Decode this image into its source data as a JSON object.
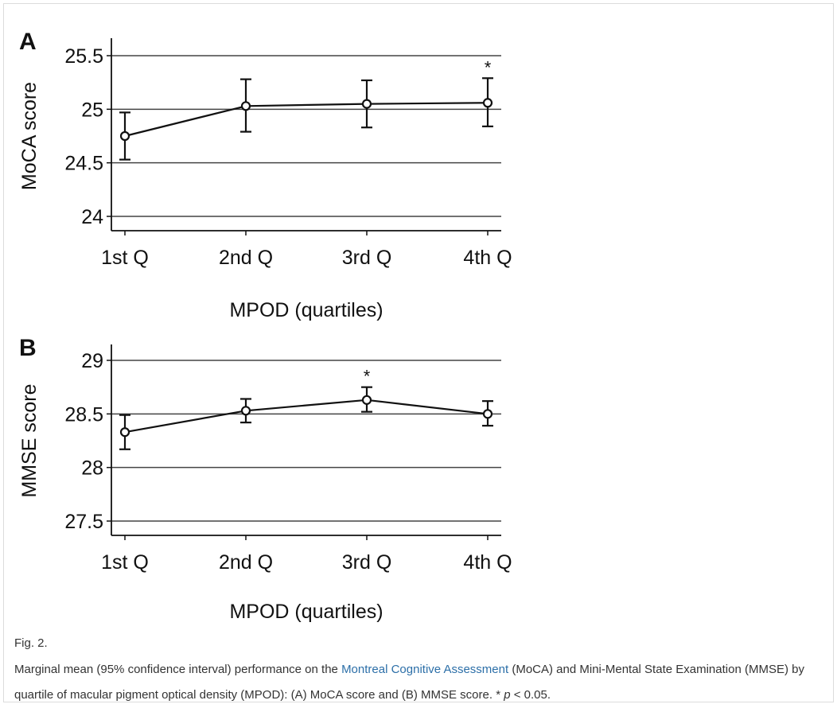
{
  "figure": {
    "label": "Fig. 2.",
    "caption": {
      "part1": "Marginal mean (95% confidence interval) performance on the ",
      "link": "Montreal Cognitive Assessment",
      "part2": " (MoCA) and Mini-Mental State Examination (MMSE) by quartile of macular pigment optical density (MPOD): (A) MoCA score and (B) MMSE score. * ",
      "p": "p",
      "part3": " < 0.05."
    },
    "link_color": "#2c6fa8"
  },
  "chart_data": [
    {
      "panel": "A",
      "type": "line",
      "categories": [
        "1st Q",
        "2nd Q",
        "3rd Q",
        "4th Q"
      ],
      "values": [
        24.75,
        25.03,
        25.05,
        25.06
      ],
      "ci_low": [
        24.53,
        24.79,
        24.83,
        24.84
      ],
      "ci_high": [
        24.97,
        25.28,
        25.27,
        25.29
      ],
      "significant": [
        false,
        false,
        false,
        true
      ],
      "significance_marker": "*",
      "xlabel": "MPOD (quartiles)",
      "ylabel": "MoCA score",
      "ylim": [
        23.9,
        25.62
      ],
      "yticks": [
        24,
        24.5,
        25,
        25.5
      ],
      "ytick_labels": [
        "24",
        "24.5",
        "25",
        "25.5"
      ],
      "grid": true
    },
    {
      "panel": "B",
      "type": "line",
      "categories": [
        "1st Q",
        "2nd Q",
        "3rd Q",
        "4th Q"
      ],
      "values": [
        28.33,
        28.53,
        28.63,
        28.5
      ],
      "ci_low": [
        28.17,
        28.42,
        28.52,
        28.39
      ],
      "ci_high": [
        28.49,
        28.64,
        28.75,
        28.62
      ],
      "significant": [
        false,
        false,
        true,
        false
      ],
      "significance_marker": "*",
      "xlabel": "MPOD (quartiles)",
      "ylabel": "MMSE score",
      "ylim": [
        27.4,
        29.12
      ],
      "yticks": [
        27.5,
        28,
        28.5,
        29
      ],
      "ytick_labels": [
        "27.5",
        "28",
        "28.5",
        "29"
      ],
      "grid": true
    }
  ]
}
